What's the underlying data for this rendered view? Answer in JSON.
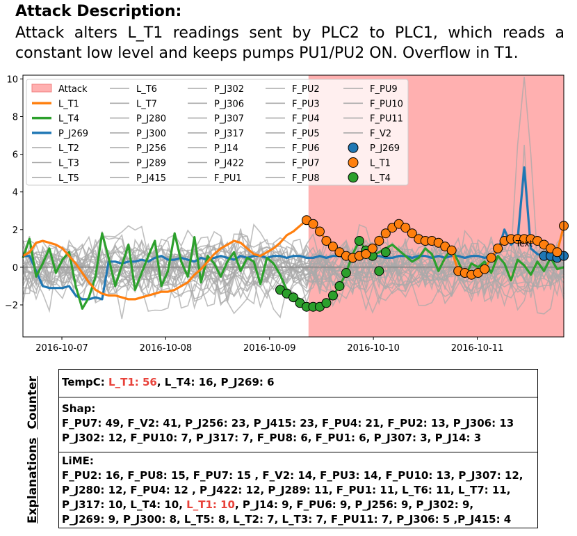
{
  "header": {
    "title": "Attack Description:",
    "body": "Attack alters L_T1 readings sent by PLC2 to PLC1, which reads a constant low level and keeps pumps PU1/PU2 ON. Overflow in T1."
  },
  "chart_data": {
    "type": "line",
    "x_range": [
      "2016-10-06 15:00",
      "2016-10-11 20:00"
    ],
    "x_ticks": [
      "2016-10-07",
      "2016-10-08",
      "2016-10-09",
      "2016-10-10",
      "2016-10-11"
    ],
    "y_ticks": [
      "10",
      "8",
      "6",
      "4",
      "2",
      "0",
      "−2"
    ],
    "ylim": [
      -3.7,
      10.2
    ],
    "attack_window": [
      "2016-10-09 09:00",
      "2016-10-11 20:00"
    ],
    "annotation": "Text",
    "legend_placement": "top-left",
    "legend": [
      [
        "Attack",
        "L_T6",
        "P_J302",
        "F_PU2",
        "F_PU9"
      ],
      [
        "L_T1",
        "L_T7",
        "P_J306",
        "F_PU3",
        "F_PU10"
      ],
      [
        "L_T4",
        "P_J280",
        "P_J307",
        "F_PU4",
        "F_PU11"
      ],
      [
        "P_J269",
        "P_J300",
        "P_J317",
        "F_PU5",
        "F_V2"
      ],
      [
        "L_T2",
        "P_J256",
        "P_J14",
        "F_PU6",
        "P_J269"
      ],
      [
        "L_T3",
        "P_J289",
        "P_J422",
        "F_PU7",
        "L_T1"
      ],
      [
        "L_T5",
        "P_J415",
        "F_PU1",
        "F_PU8",
        "L_T4"
      ]
    ],
    "colors": {
      "attack": "#ffb0b0",
      "L_T1": "#ff7f0e",
      "L_T4": "#2ca02c",
      "P_J269": "#1f77b4",
      "other": "#aaaaaa"
    },
    "series": [
      {
        "name": "L_T1",
        "values": [
          0.6,
          0.8,
          1.3,
          1.4,
          1.3,
          1.2,
          1.0,
          0.6,
          0.2,
          -0.3,
          -0.8,
          -1.2,
          -1.4,
          -1.5,
          -1.5,
          -1.6,
          -1.7,
          -1.7,
          -1.6,
          -1.5,
          -1.4,
          -1.3,
          -1.3,
          -1.2,
          -1.0,
          -0.8,
          -0.4,
          -0.1,
          0.3,
          0.7,
          1.0,
          1.2,
          1.4,
          1.3,
          1.0,
          0.7,
          0.6,
          0.8,
          1.0,
          1.3,
          1.7,
          1.9,
          2.2,
          2.5,
          2.3,
          1.9,
          1.4,
          1.1,
          0.8,
          0.6,
          0.5,
          0.6,
          0.7,
          1.0,
          1.4,
          1.8,
          2.1,
          2.3,
          2.1,
          1.8,
          1.5,
          1.4,
          1.4,
          1.3,
          1.1,
          0.9,
          -0.2,
          -0.3,
          -0.4,
          -0.3,
          -0.1,
          0.5,
          1.0,
          1.4,
          1.5,
          1.5,
          1.5,
          1.5,
          1.4,
          1.2,
          1.0,
          0.8,
          2.2
        ]
      },
      {
        "name": "L_T4",
        "values": [
          0.5,
          1.5,
          -0.5,
          0.2,
          1.0,
          -0.3,
          0.4,
          0.8,
          -1.0,
          -2.2,
          -1.6,
          -0.5,
          1.8,
          0.5,
          -1.0,
          0.1,
          1.2,
          -1.2,
          -0.3,
          0.6,
          1.4,
          -1.0,
          -0.2,
          1.8,
          0.3,
          -0.5,
          1.6,
          -0.8,
          0.6,
          0.2,
          -0.5,
          0.3,
          0.8,
          -0.2,
          0.5,
          0.3,
          -0.9,
          0.5,
          0.2,
          -0.4,
          -1.2,
          -1.5,
          -1.7,
          -2.0,
          -2.2,
          -2.1,
          -1.9,
          -1.5,
          -1.0,
          -0.3,
          0.7,
          1.4,
          0.9,
          0.6,
          0.8,
          1.0,
          1.2,
          0.9,
          0.6,
          0.3,
          0.5,
          1.0,
          0.7,
          -0.2,
          0.5,
          1.0,
          0.3,
          -0.5,
          0.2,
          0.0,
          0.3,
          -0.3,
          0.6,
          0.2,
          -0.7,
          0.4,
          0.1,
          -0.4,
          0.3,
          -0.2,
          0.5,
          -0.1,
          0.0
        ],
        "markers": [
          [
            39,
            -1.2
          ],
          [
            40,
            -1.4
          ],
          [
            41,
            -1.6
          ],
          [
            42,
            -1.9
          ],
          [
            43,
            -2.1
          ],
          [
            44,
            -2.1
          ],
          [
            45,
            -2.1
          ],
          [
            46,
            -1.9
          ],
          [
            47,
            -1.5
          ],
          [
            48,
            -1.0
          ],
          [
            49,
            -0.3
          ],
          [
            50,
            0.5
          ],
          [
            51,
            1.4
          ],
          [
            52,
            0.9
          ],
          [
            53,
            0.6
          ],
          [
            54,
            -0.2
          ],
          [
            55,
            0.8
          ]
        ]
      },
      {
        "name": "P_J269",
        "values": [
          0.6,
          0.6,
          -0.2,
          -1.0,
          -1.1,
          -1.1,
          -1.1,
          -1.0,
          -1.5,
          -1.7,
          -1.7,
          -1.6,
          -1.7,
          0.3,
          0.3,
          0.2,
          0.3,
          0.3,
          0.4,
          0.3,
          0.5,
          0.6,
          0.4,
          0.4,
          0.5,
          0.4,
          0.3,
          0.5,
          0.4,
          0.5,
          0.6,
          0.5,
          0.4,
          0.6,
          0.5,
          0.6,
          0.6,
          0.5,
          0.6,
          0.6,
          0.5,
          0.6,
          0.6,
          0.5,
          0.5,
          0.6,
          0.5,
          0.6,
          0.6,
          0.5,
          0.6,
          0.6,
          0.5,
          0.6,
          0.6,
          0.5,
          0.5,
          0.6,
          0.6,
          0.5,
          0.6,
          0.6,
          0.5,
          0.6,
          0.5,
          0.6,
          0.6,
          0.5,
          0.6,
          0.6,
          0.5,
          0.6,
          0.8,
          2.0,
          1.2,
          1.5,
          5.3,
          1.0,
          0.7,
          0.6,
          0.6,
          0.5,
          0.6
        ]
      }
    ]
  },
  "explanations": {
    "label_counter": "Counter",
    "label_explanations": "Explanations",
    "tempc_label": "TempC:",
    "tempc_highlight": "L_T1: 56",
    "tempc_rest": ", L_T4: 16, P_J269: 6",
    "shap_label": "Shap:",
    "shap_line1": "F_PU7: 49, F_V2: 41, P_J256: 23, P_J415: 23, F_PU4: 21, F_PU2: 13, P_J306: 13",
    "shap_line2": "P_J302: 12, F_PU10: 7, P_J317: 7, F_PU8: 6, F_PU1: 6, P_J307: 3, P_J14: 3",
    "lime_label": "LiME:",
    "lime_line1": "F_PU2: 16, F_PU8: 15, F_PU7: 15 , F_V2: 14, F_PU3: 14, F_PU10: 13, P_J307: 12,",
    "lime_line2": "P_J280: 12, F_PU4: 12 , P_J422: 12, P_J289: 11, F_PU1: 11, L_T6: 11, L_T7: 11,",
    "lime_line3a": "P_J317: 10, L_T4: 10, ",
    "lime_line3_highlight": "L_T1: 10",
    "lime_line3b": ", P_J14: 9, F_PU6: 9, P_J256: 9, P_J302: 9,",
    "lime_line4": "P_J269: 9, P_J300: 8, L_T5: 8, L_T2: 7, L_T3: 7, F_PU11: 7, P_J306: 5 ,P_J415: 4"
  }
}
